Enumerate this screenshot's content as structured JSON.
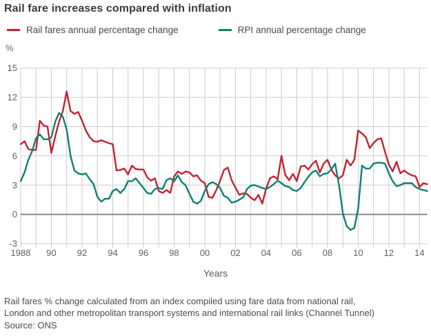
{
  "title": "Rail fare increases compared with inflation",
  "legend": [
    {
      "label": "Rail fares annual percentage change",
      "color": "#c3212f"
    },
    {
      "label": "RPI annual percentage change",
      "color": "#0e7f74"
    }
  ],
  "footnote": {
    "line1": "Rail fares % change calculated from an index compiled using fare data from national rail,",
    "line2": "London and other metropolitan transport systems and international rail links (Channel Tunnel)"
  },
  "source": "Source: ONS",
  "chart_data": {
    "type": "line",
    "title": "Rail fare increases compared with inflation",
    "xlabel": "Years",
    "ylabel": "%",
    "unit_label": "%",
    "grid": true,
    "legend_position": "top",
    "xlim": [
      1988,
      2014.5
    ],
    "ylim": [
      -3,
      15
    ],
    "y_ticks": [
      15,
      12,
      9,
      6,
      3,
      0,
      -3
    ],
    "x_ticks": [
      {
        "label": "1988",
        "year": 1988
      },
      {
        "label": "90",
        "year": 1990
      },
      {
        "label": "92",
        "year": 1992
      },
      {
        "label": "94",
        "year": 1994
      },
      {
        "label": "96",
        "year": 1996
      },
      {
        "label": "98",
        "year": 1998
      },
      {
        "label": "00",
        "year": 2000
      },
      {
        "label": "02",
        "year": 2002
      },
      {
        "label": "04",
        "year": 2004
      },
      {
        "label": "06",
        "year": 2006
      },
      {
        "label": "08",
        "year": 2008
      },
      {
        "label": "10",
        "year": 2010
      },
      {
        "label": "12",
        "year": 2012
      },
      {
        "label": "14",
        "year": 2014
      }
    ],
    "x_start": 1988,
    "x_step": 0.25,
    "series": [
      {
        "name": "Rail fares annual percentage change",
        "color": "#c3212f",
        "values": [
          7.2,
          7.5,
          6.7,
          6.6,
          6.6,
          9.6,
          9.1,
          9.0,
          6.3,
          8.0,
          9.5,
          10.6,
          12.6,
          10.6,
          10.3,
          10.5,
          9.6,
          8.6,
          7.9,
          7.5,
          7.45,
          7.6,
          7.45,
          7.3,
          7.2,
          4.5,
          4.55,
          4.7,
          4.1,
          5.0,
          4.65,
          4.6,
          4.6,
          3.8,
          3.45,
          3.7,
          2.4,
          2.2,
          2.5,
          2.2,
          3.9,
          4.4,
          4.15,
          4.4,
          4.3,
          3.9,
          4.0,
          3.45,
          3.2,
          1.8,
          1.7,
          2.5,
          3.45,
          4.55,
          4.8,
          3.5,
          2.75,
          2.0,
          2.15,
          2.1,
          1.7,
          1.45,
          2.0,
          1.1,
          2.65,
          3.7,
          3.9,
          3.6,
          6.0,
          4.05,
          3.5,
          4.15,
          3.4,
          4.9,
          5.0,
          4.6,
          5.15,
          5.5,
          4.3,
          5.2,
          5.6,
          4.6,
          4.0,
          3.7,
          4.0,
          5.6,
          5.0,
          5.6,
          8.6,
          8.3,
          7.9,
          6.8,
          7.3,
          7.7,
          7.8,
          6.4,
          5.1,
          4.4,
          5.4,
          4.2,
          4.5,
          4.2,
          4.0,
          3.9,
          2.8,
          3.2,
          3.1
        ]
      },
      {
        "name": "RPI annual percentage change",
        "color": "#0e7f74",
        "values": [
          3.4,
          4.3,
          5.6,
          6.5,
          7.8,
          8.2,
          7.7,
          7.7,
          7.9,
          9.5,
          10.4,
          10.0,
          8.7,
          6.0,
          4.5,
          4.2,
          4.1,
          4.2,
          3.6,
          3.1,
          1.8,
          1.3,
          1.6,
          1.6,
          2.4,
          2.6,
          2.2,
          2.6,
          3.4,
          3.4,
          3.7,
          3.2,
          2.7,
          2.2,
          2.1,
          2.6,
          2.7,
          2.6,
          3.5,
          3.7,
          3.4,
          4.0,
          3.3,
          3.0,
          2.1,
          1.3,
          1.1,
          1.4,
          2.4,
          3.1,
          3.3,
          3.1,
          2.7,
          1.9,
          1.7,
          1.2,
          1.3,
          1.5,
          1.75,
          2.6,
          2.95,
          3.0,
          2.85,
          2.7,
          2.6,
          2.8,
          3.1,
          3.45,
          3.2,
          2.9,
          2.8,
          2.5,
          2.4,
          2.7,
          3.3,
          3.85,
          4.3,
          4.5,
          3.9,
          4.15,
          4.2,
          4.6,
          5.2,
          3.0,
          0.1,
          -1.2,
          -1.6,
          -1.4,
          0.6,
          5.0,
          4.7,
          4.7,
          5.2,
          5.3,
          5.3,
          5.2,
          4.2,
          3.4,
          2.9,
          3.0,
          3.2,
          3.2,
          3.2,
          2.8,
          2.6,
          2.5,
          2.4
        ]
      }
    ],
    "colors": {
      "grid": "#cccccc",
      "zero_line": "#8a8a8a",
      "tick_text": "#5f5f5f"
    }
  }
}
